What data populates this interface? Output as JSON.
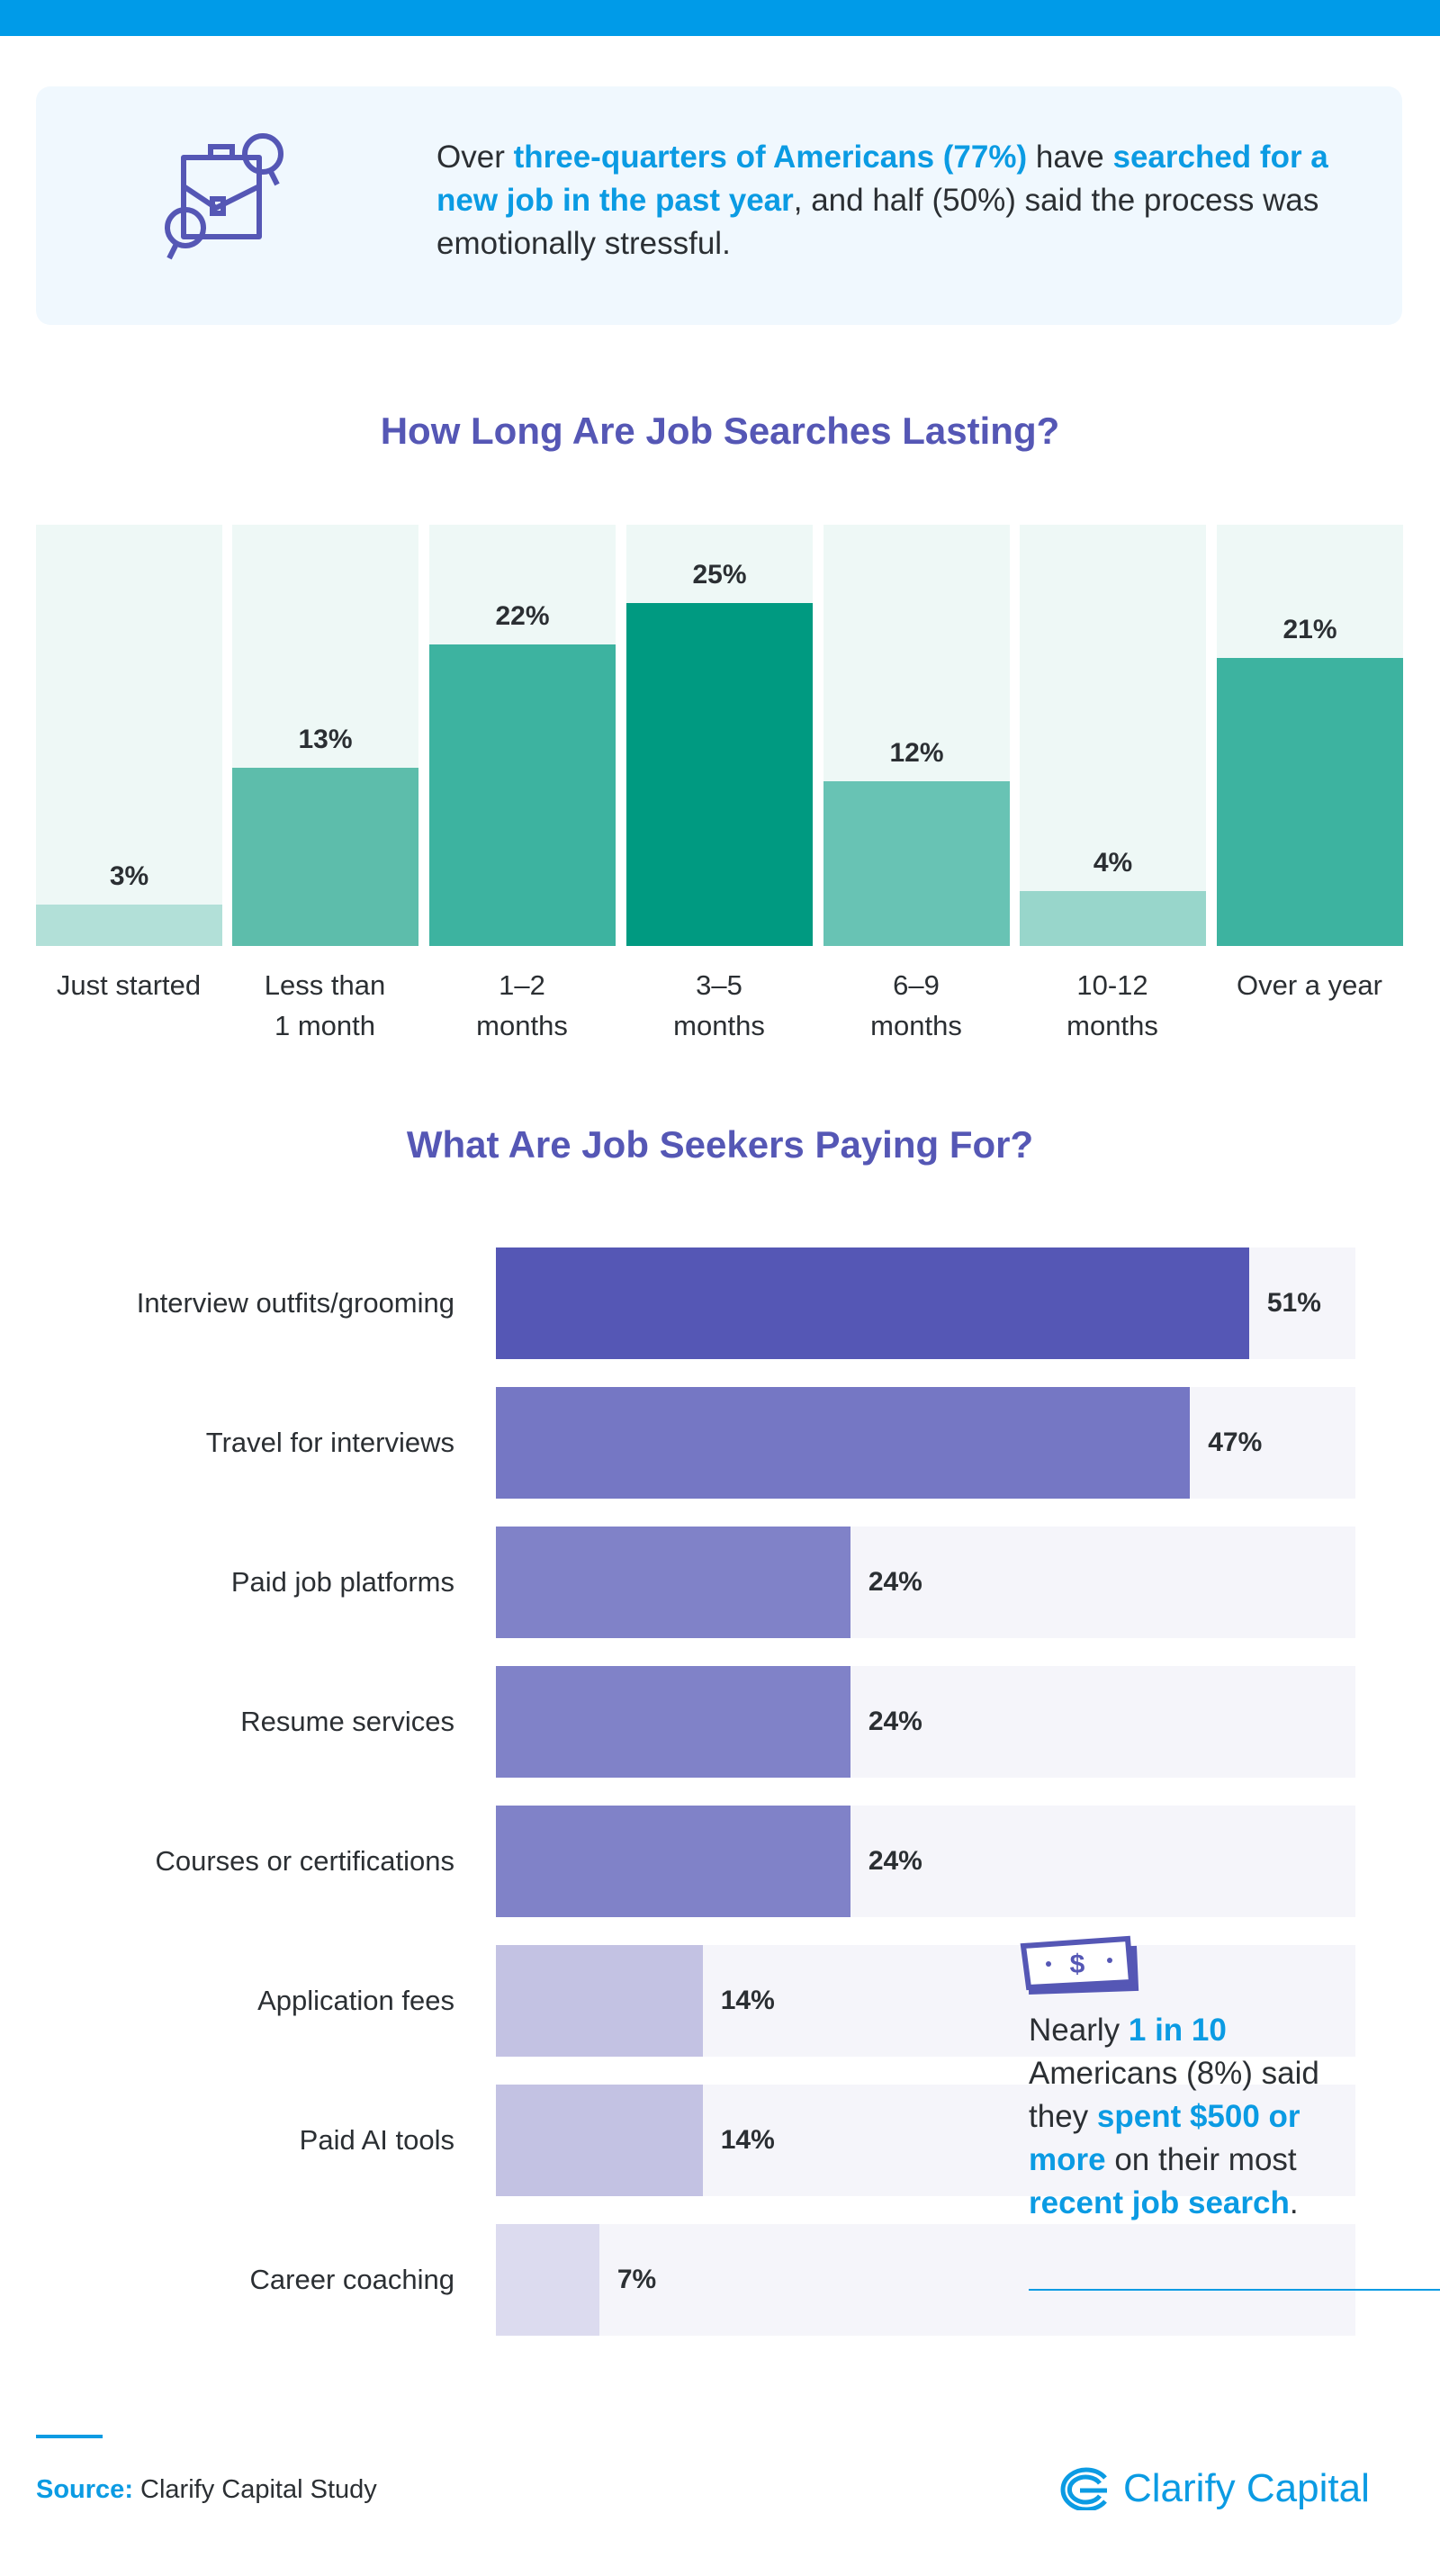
{
  "intro": {
    "parts": [
      "Over ",
      "three-quarters of Americans (77%)",
      " have ",
      "searched for a new job in the past year",
      ", and half (50%) said the process was emotionally stressful."
    ],
    "icon": "briefcase-magnifier-icon"
  },
  "chart_data": [
    {
      "type": "bar",
      "title": "How Long Are Job Searches Lasting?",
      "categories": [
        [
          "Just started"
        ],
        [
          "Less than",
          "1 month"
        ],
        [
          "1–2",
          "months"
        ],
        [
          "3–5",
          "months"
        ],
        [
          "6–9",
          "months"
        ],
        [
          "10-12",
          "months"
        ],
        [
          "Over a year"
        ]
      ],
      "values": [
        3,
        13,
        22,
        25,
        12,
        4,
        21
      ],
      "labels": [
        "3%",
        "13%",
        "22%",
        "25%",
        "12%",
        "4%",
        "21%"
      ],
      "colors": [
        "#b2e0d8",
        "#5dbdab",
        "#3db3a0",
        "#009a81",
        "#68c3b4",
        "#98d6cb",
        "#3db3a0"
      ],
      "track_color": "#eef8f6",
      "ylim": [
        0,
        30.7
      ]
    },
    {
      "type": "bar",
      "orientation": "horizontal",
      "title": "What Are Job Seekers Paying For?",
      "categories": [
        "Interview outfits/grooming",
        "Travel for interviews",
        "Paid job platforms",
        "Resume services",
        "Courses or certifications",
        "Application fees",
        "Paid AI tools",
        "Career coaching"
      ],
      "values": [
        51,
        47,
        24,
        24,
        24,
        14,
        14,
        7
      ],
      "labels": [
        "51%",
        "47%",
        "24%",
        "24%",
        "24%",
        "14%",
        "14%",
        "7%"
      ],
      "colors": [
        "#5557b5",
        "#7577c4",
        "#8082c8",
        "#8082c8",
        "#8082c8",
        "#c3c2e3",
        "#c3c2e3",
        "#dcdbef"
      ],
      "track_color": "#f5f5fa",
      "xlim": [
        0,
        58.2
      ]
    }
  ],
  "callout": {
    "icon": "dollar-bill-icon",
    "parts": [
      "Nearly ",
      "1 in 10",
      " Americans (8%) said they ",
      "spent $500 or more",
      " on their most ",
      "recent job search",
      "."
    ]
  },
  "footer": {
    "source_label": "Source:",
    "source_text": " Clarify Capital Study",
    "logo_text": "Clarify Capital"
  },
  "colors": {
    "accent_blue": "#0b9be3",
    "title_purple": "#5557b5",
    "top_bar": "#009be8"
  }
}
